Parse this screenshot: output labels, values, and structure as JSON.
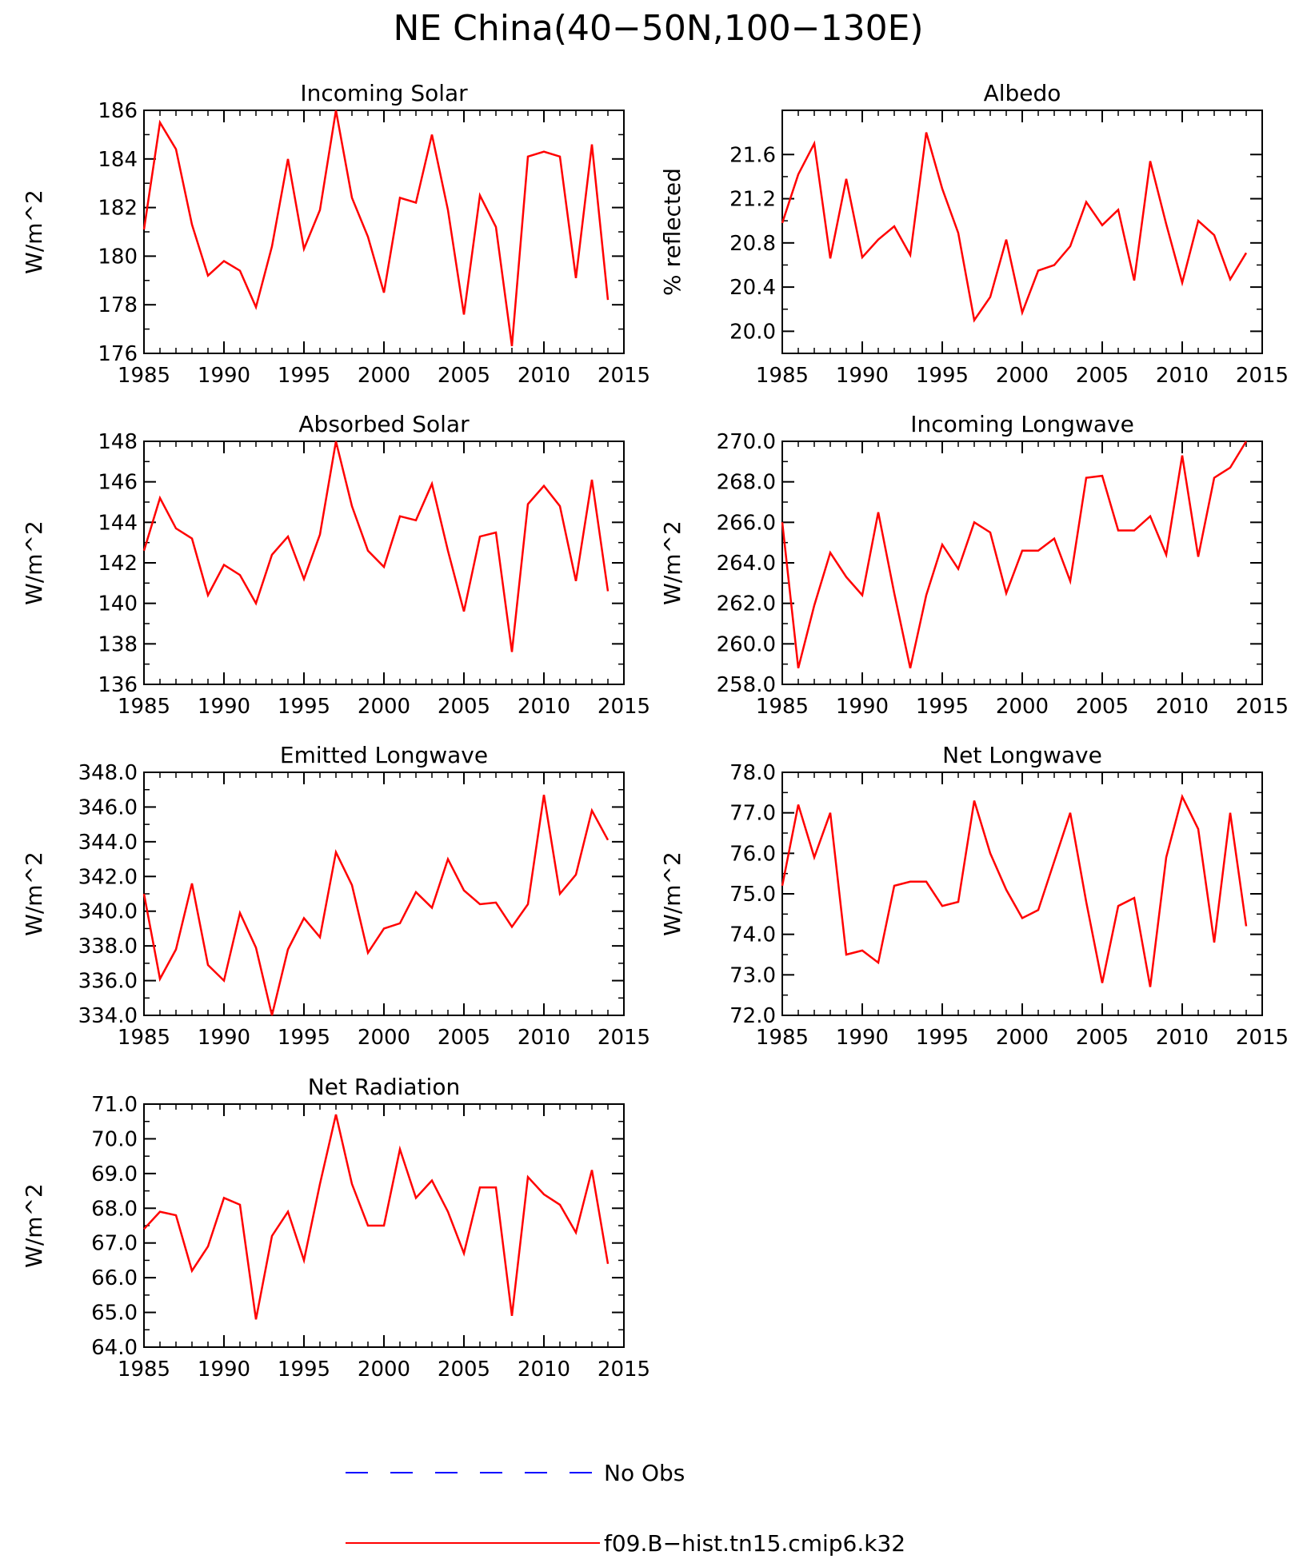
{
  "figure": {
    "title": "NE China(40−50N,100−130E)",
    "legend": [
      {
        "label": "No Obs",
        "color": "#0000ff",
        "style": "dashed"
      },
      {
        "label": "f09.B−hist.tn15.cmip6.k32",
        "color": "#ff0000",
        "style": "solid"
      }
    ]
  },
  "colors": {
    "line": "#ff0000",
    "obs": "#0000ff",
    "axes": "#000000"
  },
  "chart_data": [
    {
      "type": "line",
      "title": "Incoming Solar",
      "ylabel": "W/m^2",
      "xlim": [
        1985,
        2015
      ],
      "ylim": [
        176,
        186
      ],
      "xticks": [
        1985,
        1990,
        1995,
        2000,
        2005,
        2010,
        2015
      ],
      "yticks": [
        176,
        178,
        180,
        182,
        184,
        186
      ],
      "ytick_labels": [
        "176",
        "178",
        "180",
        "182",
        "184",
        "186"
      ],
      "x": [
        1985,
        1986,
        1987,
        1988,
        1989,
        1990,
        1991,
        1992,
        1993,
        1994,
        1995,
        1996,
        1997,
        1998,
        1999,
        2000,
        2001,
        2002,
        2003,
        2004,
        2005,
        2006,
        2007,
        2008,
        2009,
        2010,
        2011,
        2012,
        2013,
        2014
      ],
      "series": [
        {
          "name": "f09.B−hist.tn15.cmip6.k32",
          "values": [
            181.1,
            185.5,
            184.4,
            181.3,
            179.2,
            179.8,
            179.4,
            177.9,
            180.4,
            184.0,
            180.3,
            181.9,
            186.0,
            182.4,
            180.8,
            178.5,
            182.4,
            182.2,
            185.0,
            181.9,
            177.6,
            182.5,
            181.2,
            176.3,
            184.1,
            184.3,
            184.1,
            179.1,
            184.6,
            178.2
          ]
        }
      ]
    },
    {
      "type": "line",
      "title": "Albedo",
      "ylabel": "% reflected",
      "xlim": [
        1985,
        2015
      ],
      "ylim": [
        19.8,
        22.0
      ],
      "xticks": [
        1985,
        1990,
        1995,
        2000,
        2005,
        2010,
        2015
      ],
      "yticks": [
        20.0,
        20.4,
        20.8,
        21.2,
        21.6
      ],
      "ytick_labels": [
        "20.0",
        "20.4",
        "20.8",
        "21.2",
        "21.6"
      ],
      "x": [
        1985,
        1986,
        1987,
        1988,
        1989,
        1990,
        1991,
        1992,
        1993,
        1994,
        1995,
        1996,
        1997,
        1998,
        1999,
        2000,
        2001,
        2002,
        2003,
        2004,
        2005,
        2006,
        2007,
        2008,
        2009,
        2010,
        2011,
        2012,
        2013,
        2014
      ],
      "series": [
        {
          "name": "f09.B−hist.tn15.cmip6.k32",
          "values": [
            20.98,
            21.42,
            21.7,
            20.66,
            21.38,
            20.67,
            20.83,
            20.95,
            20.69,
            21.8,
            21.29,
            20.89,
            20.1,
            20.31,
            20.83,
            20.17,
            20.55,
            20.6,
            20.77,
            21.17,
            20.96,
            21.1,
            20.46,
            21.54,
            20.97,
            20.44,
            21.0,
            20.87,
            20.47,
            20.71
          ]
        }
      ]
    },
    {
      "type": "line",
      "title": "Absorbed Solar",
      "ylabel": "W/m^2",
      "xlim": [
        1985,
        2015
      ],
      "ylim": [
        136,
        148
      ],
      "xticks": [
        1985,
        1990,
        1995,
        2000,
        2005,
        2010,
        2015
      ],
      "yticks": [
        136,
        138,
        140,
        142,
        144,
        146,
        148
      ],
      "ytick_labels": [
        "136",
        "138",
        "140",
        "142",
        "144",
        "146",
        "148"
      ],
      "x": [
        1985,
        1986,
        1987,
        1988,
        1989,
        1990,
        1991,
        1992,
        1993,
        1994,
        1995,
        1996,
        1997,
        1998,
        1999,
        2000,
        2001,
        2002,
        2003,
        2004,
        2005,
        2006,
        2007,
        2008,
        2009,
        2010,
        2011,
        2012,
        2013,
        2014
      ],
      "series": [
        {
          "name": "f09.B−hist.tn15.cmip6.k32",
          "values": [
            142.6,
            145.2,
            143.7,
            143.2,
            140.4,
            141.9,
            141.4,
            140.0,
            142.4,
            143.3,
            141.2,
            143.4,
            148.0,
            144.8,
            142.6,
            141.8,
            144.3,
            144.1,
            145.9,
            142.6,
            139.6,
            143.3,
            143.5,
            137.6,
            144.9,
            145.8,
            144.8,
            141.1,
            146.1,
            140.6
          ]
        }
      ]
    },
    {
      "type": "line",
      "title": "Incoming Longwave",
      "ylabel": "W/m^2",
      "xlim": [
        1985,
        2015
      ],
      "ylim": [
        258,
        270
      ],
      "xticks": [
        1985,
        1990,
        1995,
        2000,
        2005,
        2010,
        2015
      ],
      "yticks": [
        258,
        260,
        262,
        264,
        266,
        268,
        270
      ],
      "ytick_labels": [
        "258.0",
        "260.0",
        "262.0",
        "264.0",
        "266.0",
        "268.0",
        "270.0"
      ],
      "x": [
        1985,
        1986,
        1987,
        1988,
        1989,
        1990,
        1991,
        1992,
        1993,
        1994,
        1995,
        1996,
        1997,
        1998,
        1999,
        2000,
        2001,
        2002,
        2003,
        2004,
        2005,
        2006,
        2007,
        2008,
        2009,
        2010,
        2011,
        2012,
        2013,
        2014
      ],
      "series": [
        {
          "name": "f09.B−hist.tn15.cmip6.k32",
          "values": [
            266.0,
            258.8,
            261.9,
            264.5,
            263.3,
            262.4,
            266.5,
            262.5,
            258.8,
            262.4,
            264.9,
            263.7,
            266.0,
            265.5,
            262.5,
            264.6,
            264.6,
            265.2,
            263.1,
            268.2,
            268.3,
            265.6,
            265.6,
            266.3,
            264.4,
            269.3,
            264.3,
            268.2,
            268.7,
            270.0
          ]
        }
      ]
    },
    {
      "type": "line",
      "title": "Emitted Longwave",
      "ylabel": "W/m^2",
      "xlim": [
        1985,
        2015
      ],
      "ylim": [
        334,
        348
      ],
      "xticks": [
        1985,
        1990,
        1995,
        2000,
        2005,
        2010,
        2015
      ],
      "yticks": [
        334,
        336,
        338,
        340,
        342,
        344,
        346,
        348
      ],
      "ytick_labels": [
        "334.0",
        "336.0",
        "338.0",
        "340.0",
        "342.0",
        "344.0",
        "346.0",
        "348.0"
      ],
      "x": [
        1985,
        1986,
        1987,
        1988,
        1989,
        1990,
        1991,
        1992,
        1993,
        1994,
        1995,
        1996,
        1997,
        1998,
        1999,
        2000,
        2001,
        2002,
        2003,
        2004,
        2005,
        2006,
        2007,
        2008,
        2009,
        2010,
        2011,
        2012,
        2013,
        2014
      ],
      "series": [
        {
          "name": "f09.B−hist.tn15.cmip6.k32",
          "values": [
            341.0,
            336.1,
            337.8,
            341.6,
            336.9,
            336.0,
            339.9,
            337.9,
            334.0,
            337.8,
            339.6,
            338.5,
            343.4,
            341.5,
            337.6,
            339.0,
            339.3,
            341.1,
            340.2,
            343.0,
            341.2,
            340.4,
            340.5,
            339.1,
            340.4,
            346.7,
            341.0,
            342.1,
            345.8,
            344.1
          ]
        }
      ]
    },
    {
      "type": "line",
      "title": "Net Longwave",
      "ylabel": "W/m^2",
      "xlim": [
        1985,
        2015
      ],
      "ylim": [
        72,
        78
      ],
      "xticks": [
        1985,
        1990,
        1995,
        2000,
        2005,
        2010,
        2015
      ],
      "yticks": [
        72,
        73,
        74,
        75,
        76,
        77,
        78
      ],
      "ytick_labels": [
        "72.0",
        "73.0",
        "74.0",
        "75.0",
        "76.0",
        "77.0",
        "78.0"
      ],
      "x": [
        1985,
        1986,
        1987,
        1988,
        1989,
        1990,
        1991,
        1992,
        1993,
        1994,
        1995,
        1996,
        1997,
        1998,
        1999,
        2000,
        2001,
        2002,
        2003,
        2004,
        2005,
        2006,
        2007,
        2008,
        2009,
        2010,
        2011,
        2012,
        2013,
        2014
      ],
      "series": [
        {
          "name": "f09.B−hist.tn15.cmip6.k32",
          "values": [
            75.2,
            77.2,
            75.9,
            77.0,
            73.5,
            73.6,
            73.3,
            75.2,
            75.3,
            75.3,
            74.7,
            74.8,
            77.3,
            76.0,
            75.1,
            74.4,
            74.6,
            75.8,
            77.0,
            74.8,
            72.8,
            74.7,
            74.9,
            72.7,
            75.9,
            77.4,
            76.6,
            73.8,
            77.0,
            74.2
          ]
        }
      ]
    },
    {
      "type": "line",
      "title": "Net Radiation",
      "ylabel": "W/m^2",
      "xlim": [
        1985,
        2015
      ],
      "ylim": [
        64,
        71
      ],
      "xticks": [
        1985,
        1990,
        1995,
        2000,
        2005,
        2010,
        2015
      ],
      "yticks": [
        64,
        65,
        66,
        67,
        68,
        69,
        70,
        71
      ],
      "ytick_labels": [
        "64.0",
        "65.0",
        "66.0",
        "67.0",
        "68.0",
        "69.0",
        "70.0",
        "71.0"
      ],
      "x": [
        1985,
        1986,
        1987,
        1988,
        1989,
        1990,
        1991,
        1992,
        1993,
        1994,
        1995,
        1996,
        1997,
        1998,
        1999,
        2000,
        2001,
        2002,
        2003,
        2004,
        2005,
        2006,
        2007,
        2008,
        2009,
        2010,
        2011,
        2012,
        2013,
        2014
      ],
      "series": [
        {
          "name": "f09.B−hist.tn15.cmip6.k32",
          "values": [
            67.4,
            67.9,
            67.8,
            66.2,
            66.9,
            68.3,
            68.1,
            64.8,
            67.2,
            67.9,
            66.5,
            68.7,
            70.7,
            68.7,
            67.5,
            67.5,
            69.7,
            68.3,
            68.8,
            67.9,
            66.7,
            68.6,
            68.6,
            64.9,
            68.9,
            68.4,
            68.1,
            67.3,
            69.1,
            66.4
          ]
        }
      ]
    }
  ]
}
